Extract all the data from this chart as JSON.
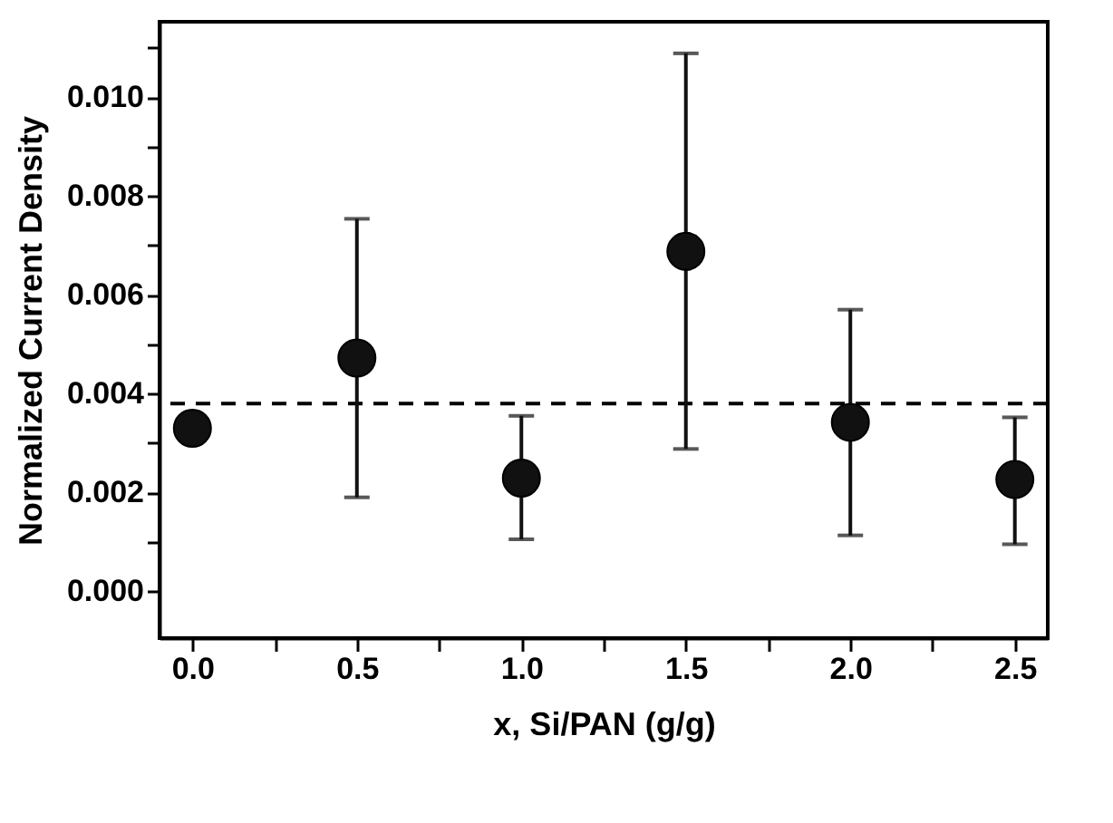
{
  "chart_data": {
    "type": "scatter",
    "xlabel": "x, Si/PAN (g/g)",
    "ylabel": "Normalized Current Density",
    "x": [
      0.0,
      0.5,
      1.0,
      1.5,
      2.0,
      2.5
    ],
    "series": [
      {
        "color": "#111111",
        "values": [
          0.0033,
          0.00472,
          0.00229,
          0.00688,
          0.00342,
          0.00226
        ],
        "errors": [
          null,
          [
            0.0019,
            0.00754
          ],
          [
            0.00105,
            0.00355
          ],
          [
            0.00288,
            0.01089
          ],
          [
            0.00113,
            0.0057
          ],
          [
            0.00095,
            0.00352
          ]
        ]
      }
    ],
    "marker": "circle",
    "xlim": [
      -0.1,
      2.6
    ],
    "ylim": [
      -0.00095,
      0.01153
    ],
    "xticks": [
      {
        "value": 0,
        "label": "0.0"
      },
      {
        "value": 0.25,
        "label": null
      },
      0.5,
      {
        "value": 0.75,
        "label": null
      },
      {
        "value": 1,
        "label": "1.0"
      },
      {
        "value": 1.25,
        "label": null
      },
      1.5,
      {
        "value": 1.75,
        "label": null
      },
      {
        "value": 2,
        "label": "2.0"
      },
      {
        "value": 2.25,
        "label": null
      },
      2.5
    ],
    "yticks": [
      {
        "value": 0,
        "label": "0.000"
      },
      {
        "value": 0.001,
        "label": null
      },
      0.002,
      {
        "value": 0.003,
        "label": null
      },
      0.004,
      {
        "value": 0.005,
        "label": null
      },
      0.006,
      {
        "value": 0.007,
        "label": null
      },
      0.008,
      {
        "value": 0.009,
        "label": null
      },
      {
        "value": 0.01,
        "label": "0.010"
      },
      {
        "value": 0.011,
        "label": null
      }
    ],
    "ref_lines": [
      {
        "axis": "y",
        "value": 0.0038,
        "line_style": "dashed",
        "color": "#000000"
      }
    ],
    "grid": false
  }
}
